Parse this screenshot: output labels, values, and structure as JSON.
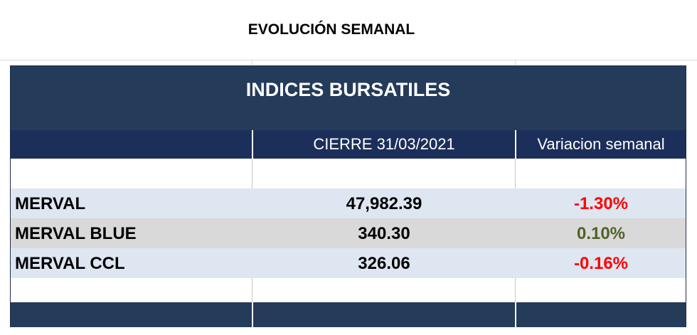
{
  "page": {
    "title": "EVOLUCIÓN SEMANAL"
  },
  "table": {
    "title": "INDICES BURSATILES",
    "columns": {
      "name": "",
      "close": "CIERRE 31/03/2021",
      "variation": "Variacion semanal"
    },
    "rows": [
      {
        "name": "MERVAL",
        "close": "47,982.39",
        "variation": "-1.30%",
        "variation_color": "#ff0000"
      },
      {
        "name": "MERVAL BLUE",
        "close": "340.30",
        "variation": "0.10%",
        "variation_color": "#4f6228"
      },
      {
        "name": "MERVAL CCL",
        "close": "326.06",
        "variation": "-0.16%",
        "variation_color": "#ff0000"
      }
    ]
  },
  "colors": {
    "title_band": "#243b5a",
    "header_band": "#1c2f5a",
    "row_a": "#dde6f1",
    "row_b": "#d9d9d9",
    "negative": "#ff0000",
    "positive": "#4f6228"
  }
}
